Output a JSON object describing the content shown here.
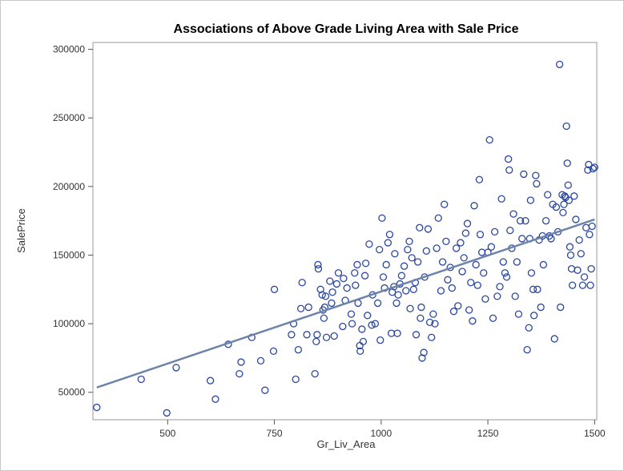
{
  "chart_data": {
    "type": "scatter",
    "title": "Associations of Above Grade Living Area with Sale Price",
    "xlabel": "Gr_Liv_Area",
    "ylabel": "SalePrice",
    "xlim": [
      325,
      1505
    ],
    "ylim": [
      30000,
      305000
    ],
    "xticks": [
      "500",
      "750",
      "1000",
      "1250",
      "1500"
    ],
    "xtick_values": [
      500,
      750,
      1000,
      1250,
      1500
    ],
    "yticks": [
      "50000",
      "100000",
      "150000",
      "200000",
      "250000",
      "300000"
    ],
    "ytick_values": [
      50000,
      100000,
      150000,
      200000,
      250000,
      300000
    ],
    "grid": false,
    "colors": {
      "marker": "#2a47a0",
      "fit_line": "#6d84a8",
      "axis": "#555555"
    },
    "fit_line": {
      "x": [
        334,
        1500
      ],
      "y": [
        53500,
        176000
      ]
    },
    "points": [
      [
        334,
        39000
      ],
      [
        438,
        59500
      ],
      [
        498,
        35000
      ],
      [
        520,
        68000
      ],
      [
        600,
        58500
      ],
      [
        612,
        45000
      ],
      [
        642,
        85000
      ],
      [
        668,
        63500
      ],
      [
        672,
        72000
      ],
      [
        697,
        90000
      ],
      [
        718,
        73000
      ],
      [
        728,
        51500
      ],
      [
        748,
        80000
      ],
      [
        750,
        125000
      ],
      [
        790,
        92000
      ],
      [
        795,
        100000
      ],
      [
        800,
        59500
      ],
      [
        806,
        81000
      ],
      [
        812,
        111000
      ],
      [
        815,
        130000
      ],
      [
        826,
        92000
      ],
      [
        830,
        112000
      ],
      [
        845,
        63500
      ],
      [
        848,
        87000
      ],
      [
        850,
        92000
      ],
      [
        852,
        143000
      ],
      [
        853,
        140000
      ],
      [
        858,
        125000
      ],
      [
        862,
        121000
      ],
      [
        864,
        110000
      ],
      [
        866,
        104000
      ],
      [
        868,
        112000
      ],
      [
        870,
        120000
      ],
      [
        872,
        90000
      ],
      [
        880,
        131000
      ],
      [
        884,
        115000
      ],
      [
        886,
        123000
      ],
      [
        890,
        91000
      ],
      [
        896,
        129000
      ],
      [
        900,
        137000
      ],
      [
        910,
        98000
      ],
      [
        912,
        133000
      ],
      [
        916,
        117000
      ],
      [
        920,
        126000
      ],
      [
        930,
        107000
      ],
      [
        932,
        100000
      ],
      [
        938,
        137000
      ],
      [
        940,
        128000
      ],
      [
        944,
        143000
      ],
      [
        946,
        115000
      ],
      [
        950,
        84000
      ],
      [
        951,
        80000
      ],
      [
        955,
        96000
      ],
      [
        958,
        87000
      ],
      [
        962,
        135000
      ],
      [
        964,
        144000
      ],
      [
        968,
        106000
      ],
      [
        972,
        158000
      ],
      [
        978,
        99000
      ],
      [
        980,
        121000
      ],
      [
        986,
        100000
      ],
      [
        992,
        115000
      ],
      [
        996,
        154000
      ],
      [
        998,
        88000
      ],
      [
        1002,
        177000
      ],
      [
        1005,
        134000
      ],
      [
        1008,
        126000
      ],
      [
        1012,
        143000
      ],
      [
        1016,
        159000
      ],
      [
        1020,
        165000
      ],
      [
        1024,
        93000
      ],
      [
        1026,
        123000
      ],
      [
        1030,
        127000
      ],
      [
        1032,
        151000
      ],
      [
        1036,
        115000
      ],
      [
        1038,
        93000
      ],
      [
        1040,
        121000
      ],
      [
        1044,
        129000
      ],
      [
        1048,
        135000
      ],
      [
        1054,
        142000
      ],
      [
        1058,
        124000
      ],
      [
        1062,
        154000
      ],
      [
        1066,
        160000
      ],
      [
        1068,
        111000
      ],
      [
        1072,
        148000
      ],
      [
        1076,
        125000
      ],
      [
        1080,
        130000
      ],
      [
        1082,
        92000
      ],
      [
        1086,
        145000
      ],
      [
        1090,
        170000
      ],
      [
        1092,
        104000
      ],
      [
        1094,
        112000
      ],
      [
        1096,
        75000
      ],
      [
        1100,
        79000
      ],
      [
        1102,
        134000
      ],
      [
        1106,
        153000
      ],
      [
        1110,
        169000
      ],
      [
        1114,
        101000
      ],
      [
        1118,
        90000
      ],
      [
        1122,
        107000
      ],
      [
        1126,
        100000
      ],
      [
        1130,
        155000
      ],
      [
        1134,
        177000
      ],
      [
        1140,
        124000
      ],
      [
        1144,
        145000
      ],
      [
        1148,
        187000
      ],
      [
        1152,
        160000
      ],
      [
        1156,
        132000
      ],
      [
        1162,
        141000
      ],
      [
        1166,
        126000
      ],
      [
        1170,
        109000
      ],
      [
        1176,
        155000
      ],
      [
        1180,
        113000
      ],
      [
        1186,
        159000
      ],
      [
        1190,
        138000
      ],
      [
        1194,
        148000
      ],
      [
        1198,
        166000
      ],
      [
        1202,
        173000
      ],
      [
        1206,
        110000
      ],
      [
        1210,
        130000
      ],
      [
        1214,
        102000
      ],
      [
        1218,
        186000
      ],
      [
        1222,
        143000
      ],
      [
        1226,
        128000
      ],
      [
        1230,
        205000
      ],
      [
        1232,
        165000
      ],
      [
        1236,
        152000
      ],
      [
        1240,
        137000
      ],
      [
        1244,
        118000
      ],
      [
        1250,
        152000
      ],
      [
        1254,
        234000
      ],
      [
        1258,
        156000
      ],
      [
        1262,
        104000
      ],
      [
        1266,
        167000
      ],
      [
        1272,
        120000
      ],
      [
        1278,
        127000
      ],
      [
        1282,
        191000
      ],
      [
        1286,
        145000
      ],
      [
        1290,
        137000
      ],
      [
        1294,
        134000
      ],
      [
        1298,
        220000
      ],
      [
        1300,
        212000
      ],
      [
        1302,
        168000
      ],
      [
        1306,
        155000
      ],
      [
        1310,
        180000
      ],
      [
        1314,
        120000
      ],
      [
        1318,
        145000
      ],
      [
        1322,
        107000
      ],
      [
        1326,
        175000
      ],
      [
        1330,
        162000
      ],
      [
        1334,
        209000
      ],
      [
        1338,
        175000
      ],
      [
        1342,
        81000
      ],
      [
        1346,
        97000
      ],
      [
        1348,
        162000
      ],
      [
        1350,
        190000
      ],
      [
        1352,
        137000
      ],
      [
        1356,
        125000
      ],
      [
        1358,
        106000
      ],
      [
        1362,
        208000
      ],
      [
        1364,
        202000
      ],
      [
        1366,
        125000
      ],
      [
        1370,
        161000
      ],
      [
        1374,
        112000
      ],
      [
        1378,
        164000
      ],
      [
        1380,
        143000
      ],
      [
        1386,
        175000
      ],
      [
        1390,
        194000
      ],
      [
        1394,
        164000
      ],
      [
        1398,
        162000
      ],
      [
        1402,
        187000
      ],
      [
        1406,
        89000
      ],
      [
        1410,
        185000
      ],
      [
        1414,
        167000
      ],
      [
        1418,
        289000
      ],
      [
        1420,
        112000
      ],
      [
        1424,
        194000
      ],
      [
        1426,
        181000
      ],
      [
        1428,
        187000
      ],
      [
        1430,
        193000
      ],
      [
        1432,
        192000
      ],
      [
        1434,
        244000
      ],
      [
        1436,
        217000
      ],
      [
        1438,
        201000
      ],
      [
        1440,
        190000
      ],
      [
        1442,
        156000
      ],
      [
        1444,
        150000
      ],
      [
        1446,
        140000
      ],
      [
        1448,
        128000
      ],
      [
        1452,
        193000
      ],
      [
        1456,
        176000
      ],
      [
        1460,
        139000
      ],
      [
        1464,
        161000
      ],
      [
        1468,
        151000
      ],
      [
        1472,
        128000
      ],
      [
        1476,
        134000
      ],
      [
        1480,
        170000
      ],
      [
        1484,
        212000
      ],
      [
        1486,
        216000
      ],
      [
        1488,
        165000
      ],
      [
        1490,
        128000
      ],
      [
        1492,
        140000
      ],
      [
        1494,
        171000
      ],
      [
        1496,
        213000
      ],
      [
        1500,
        214000
      ]
    ]
  }
}
